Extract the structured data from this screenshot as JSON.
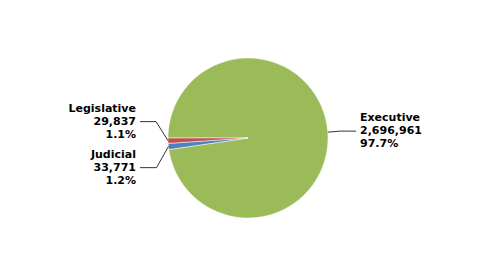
{
  "chart_data": {
    "type": "pie",
    "categories": [
      "Executive",
      "Judicial",
      "Legislative"
    ],
    "values": [
      2696961,
      33771,
      29837
    ],
    "value_labels": [
      "2,696,961",
      "33,771",
      "29,837"
    ],
    "percentage_labels": [
      "97.7%",
      "1.2%",
      "1.1%"
    ],
    "colors": [
      "#9BBB59",
      "#4F81BD",
      "#C0504D"
    ],
    "data_labels": true
  }
}
